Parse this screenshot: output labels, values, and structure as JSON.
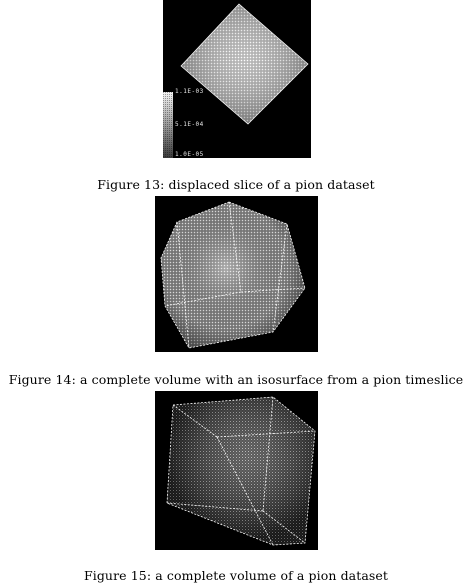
{
  "figures": [
    {
      "caption": "Figure 13: displaced slice of a pion dataset",
      "colorbar_labels": [
        "1.1E-03",
        "5.1E-04",
        "1.0E-05"
      ]
    },
    {
      "caption": "Figure 14: a complete volume with an isosurface from a pion timeslice"
    },
    {
      "caption": "Figure 15: a complete volume of a pion dataset"
    }
  ],
  "colors": {
    "background": "#000000",
    "lines": "#ffffff",
    "caption_text": "#000000"
  }
}
